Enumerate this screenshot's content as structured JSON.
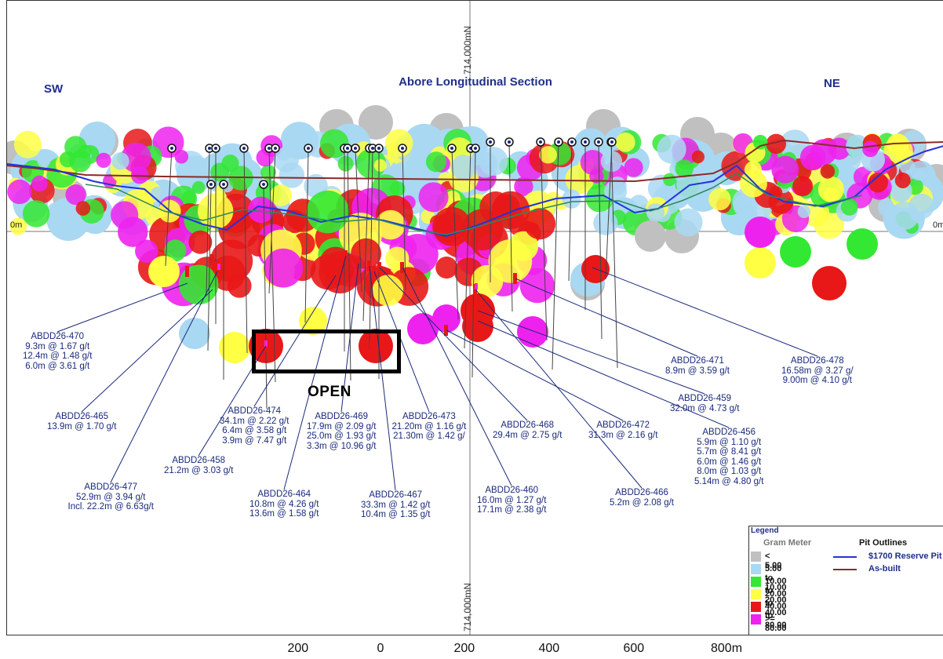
{
  "title": "Abore Longitudinal Section",
  "directions": {
    "left": "SW",
    "right": "NE"
  },
  "reference_level": {
    "left": "0m",
    "right": "0m"
  },
  "northing_label_top": "714,000mN",
  "northing_label_bottom": "714,000mN",
  "open_label": "OPEN",
  "scale_bar": [
    "200",
    "0",
    "200",
    "400",
    "600",
    "800m"
  ],
  "legend": {
    "title": "Legend",
    "gram_meter_heading": "Gram Meter",
    "pit_heading": "Pit Outlines",
    "classes": [
      {
        "label": "< 5.00",
        "color": "#c0c0c0"
      },
      {
        "label": "5.00 to 10.00",
        "color": "#a9d8f2"
      },
      {
        "label": "10.00 to 20.00",
        "color": "#33e833"
      },
      {
        "label": "20.00 to 40.00",
        "color": "#ffff44"
      },
      {
        "label": "40.00 to 80.00",
        "color": "#e81818"
      },
      {
        "label": ">= 80.00",
        "color": "#ee22ee"
      }
    ],
    "pits": [
      {
        "label": "$1700 Reserve Pit",
        "color": "#2233dd"
      },
      {
        "label": "As-built",
        "color": "#8b2a2a"
      }
    ]
  },
  "drill_holes": [
    {
      "id": "ABDD26-470",
      "lines": [
        "9.3m @ 1.67 g/t",
        "12.4m @ 1.48 g/t",
        "6.0m @ 3.61 g/t"
      ]
    },
    {
      "id": "ABDD26-465",
      "lines": [
        "13.9m @ 1.70 g/t"
      ]
    },
    {
      "id": "ABDD26-477",
      "lines": [
        "52.9m @ 3.94 g/t",
        "Incl. 22.2m @ 6.63g/t"
      ]
    },
    {
      "id": "ABDD26-458",
      "lines": [
        "21.2m @ 3.03 g/t"
      ]
    },
    {
      "id": "ABDD26-474",
      "lines": [
        "34.1m @ 2.22 g/t",
        "6.4m @ 3.58 g/t",
        "3.9m @ 7.47 g/t"
      ]
    },
    {
      "id": "ABDD26-464",
      "lines": [
        "10.8m @ 4.26 g/t",
        "13.6m @ 1.58 g/t"
      ]
    },
    {
      "id": "ABDD26-469",
      "lines": [
        "17.9m @ 2.09 g/t",
        "25.0m @ 1.93 g/t",
        "3.3m @ 10.96 g/t"
      ]
    },
    {
      "id": "ABDD26-467",
      "lines": [
        "33.3m @ 1.42 g/t",
        "10.4m @ 1.35 g/t"
      ]
    },
    {
      "id": "ABDD26-473",
      "lines": [
        "21.20m @ 1.16 g/t",
        "21.30m @ 1.42 g/"
      ]
    },
    {
      "id": "ABDD26-468",
      "lines": [
        "29.4m @ 2.75 g/t"
      ]
    },
    {
      "id": "ABDD26-460",
      "lines": [
        "16.0m @ 1.27 g/t",
        "17.1m @ 2.38 g/t"
      ]
    },
    {
      "id": "ABDD26-472",
      "lines": [
        "31.3m @ 2.16 g/t"
      ]
    },
    {
      "id": "ABDD26-466",
      "lines": [
        "5.2m @ 2.08 g/t"
      ]
    },
    {
      "id": "ABDD26-471",
      "lines": [
        "8.9m @ 3.59 g/t"
      ]
    },
    {
      "id": "ABDD26-459",
      "lines": [
        "32.0m @ 4.73 g/t"
      ]
    },
    {
      "id": "ABDD26-478",
      "lines": [
        "16.58m @ 3.27 g/",
        "9.00m @ 4.10 g/t"
      ]
    },
    {
      "id": "ABDD26-456",
      "lines": [
        "5.9m @ 1.10 g/t",
        "5.7m @ 8.41 g/t",
        "6.0m @ 1.46 g/t",
        "8.0m @ 1.03 g/t",
        "5.14m @ 4.80 g/t"
      ]
    }
  ]
}
